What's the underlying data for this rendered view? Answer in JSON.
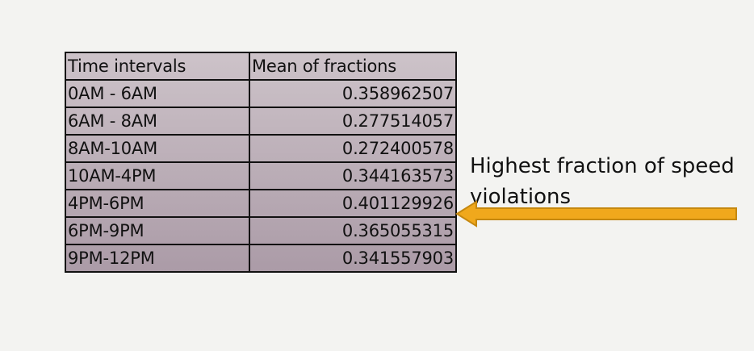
{
  "table": {
    "headers": [
      "Time intervals",
      "Mean of fractions"
    ],
    "rows": [
      [
        "0AM - 6AM",
        "0.358962507"
      ],
      [
        "6AM - 8AM",
        "0.277514057"
      ],
      [
        "8AM-10AM",
        "0.272400578"
      ],
      [
        "10AM-4PM",
        "0.344163573"
      ],
      [
        "4PM-6PM",
        "0.401129926"
      ],
      [
        "6PM-9PM",
        "0.365055315"
      ],
      [
        "9PM-12PM",
        "0.341557903"
      ]
    ]
  },
  "annotation": {
    "text": "Highest fraction of speed violations",
    "highlighted_row": 4
  },
  "colors": {
    "arrow_fill": "#f0a81c",
    "arrow_stroke": "#c58810",
    "table_top": "#cdc3c9",
    "table_bottom": "#ab9ba7",
    "background": "#f3f3f1"
  }
}
